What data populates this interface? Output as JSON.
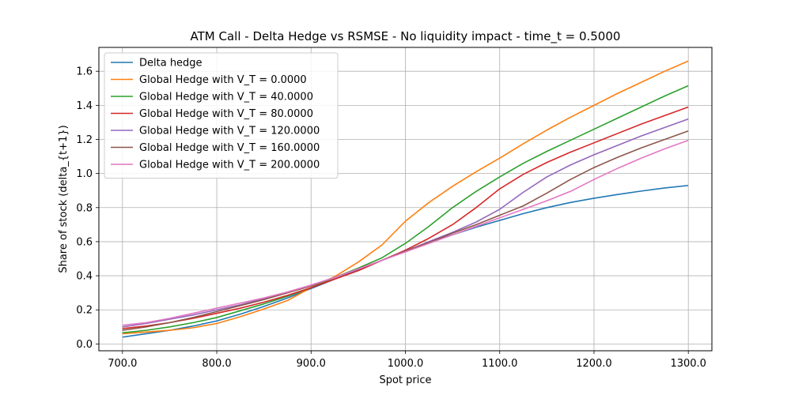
{
  "chart_data": {
    "type": "line",
    "title": "ATM Call - Delta Hedge vs RSMSE - No liquidity impact - time_t = 0.5000",
    "xlabel": "Spot price",
    "ylabel": "Share of stock (delta_{t+1})",
    "xlim": [
      675,
      1325
    ],
    "ylim": [
      -0.04,
      1.74
    ],
    "xticks": [
      700,
      800,
      900,
      1000,
      1100,
      1200,
      1300
    ],
    "xtick_labels": [
      "700.0",
      "800.0",
      "900.0",
      "1000.0",
      "1100.0",
      "1200.0",
      "1300.0"
    ],
    "yticks": [
      0.0,
      0.2,
      0.4,
      0.6,
      0.8,
      1.0,
      1.2,
      1.4,
      1.6
    ],
    "ytick_labels": [
      "0.0",
      "0.2",
      "0.4",
      "0.6",
      "0.8",
      "1.0",
      "1.2",
      "1.4",
      "1.6"
    ],
    "grid": true,
    "legend_position": "top-left",
    "x": [
      700,
      725,
      750,
      775,
      800,
      825,
      850,
      875,
      900,
      925,
      950,
      975,
      1000,
      1025,
      1050,
      1075,
      1100,
      1125,
      1150,
      1175,
      1200,
      1225,
      1250,
      1275,
      1300
    ],
    "series": [
      {
        "name": "Delta hedge",
        "color": "#1f77b4",
        "values": [
          0.04,
          0.06,
          0.08,
          0.105,
          0.135,
          0.175,
          0.22,
          0.27,
          0.325,
          0.38,
          0.435,
          0.49,
          0.545,
          0.595,
          0.64,
          0.685,
          0.725,
          0.765,
          0.8,
          0.83,
          0.855,
          0.877,
          0.897,
          0.915,
          0.93
        ]
      },
      {
        "name": "Global Hedge with V_T = 0.0000",
        "color": "#ff7f0e",
        "values": [
          0.06,
          0.07,
          0.08,
          0.095,
          0.12,
          0.16,
          0.205,
          0.255,
          0.33,
          0.395,
          0.48,
          0.58,
          0.72,
          0.83,
          0.925,
          1.01,
          1.09,
          1.175,
          1.255,
          1.33,
          1.4,
          1.47,
          1.535,
          1.6,
          1.66
        ]
      },
      {
        "name": "Global Hedge with V_T = 40.0000",
        "color": "#2ca02c",
        "values": [
          0.065,
          0.08,
          0.1,
          0.125,
          0.155,
          0.195,
          0.235,
          0.28,
          0.33,
          0.39,
          0.445,
          0.505,
          0.59,
          0.69,
          0.8,
          0.895,
          0.98,
          1.06,
          1.13,
          1.195,
          1.26,
          1.325,
          1.39,
          1.455,
          1.515
        ]
      },
      {
        "name": "Global Hedge with V_T = 80.0000",
        "color": "#d62728",
        "values": [
          0.09,
          0.105,
          0.125,
          0.15,
          0.18,
          0.21,
          0.245,
          0.285,
          0.33,
          0.38,
          0.43,
          0.49,
          0.55,
          0.62,
          0.7,
          0.8,
          0.91,
          0.995,
          1.065,
          1.125,
          1.18,
          1.235,
          1.29,
          1.34,
          1.39
        ]
      },
      {
        "name": "Global Hedge with V_T = 120.0000",
        "color": "#9467bd",
        "values": [
          0.1,
          0.12,
          0.145,
          0.17,
          0.2,
          0.23,
          0.265,
          0.3,
          0.345,
          0.39,
          0.44,
          0.49,
          0.545,
          0.6,
          0.655,
          0.715,
          0.79,
          0.89,
          0.98,
          1.05,
          1.11,
          1.165,
          1.22,
          1.27,
          1.32
        ]
      },
      {
        "name": "Global Hedge with V_T = 160.0000",
        "color": "#8c564b",
        "values": [
          0.08,
          0.1,
          0.125,
          0.155,
          0.19,
          0.225,
          0.26,
          0.3,
          0.34,
          0.39,
          0.44,
          0.49,
          0.545,
          0.595,
          0.65,
          0.7,
          0.755,
          0.81,
          0.885,
          0.965,
          1.035,
          1.095,
          1.15,
          1.2,
          1.25
        ]
      },
      {
        "name": "Global Hedge with V_T = 200.0000",
        "color": "#e377c2",
        "values": [
          0.11,
          0.125,
          0.15,
          0.18,
          0.21,
          0.24,
          0.27,
          0.305,
          0.345,
          0.39,
          0.44,
          0.49,
          0.54,
          0.59,
          0.64,
          0.69,
          0.74,
          0.79,
          0.84,
          0.895,
          0.965,
          1.03,
          1.09,
          1.145,
          1.195
        ]
      }
    ]
  }
}
